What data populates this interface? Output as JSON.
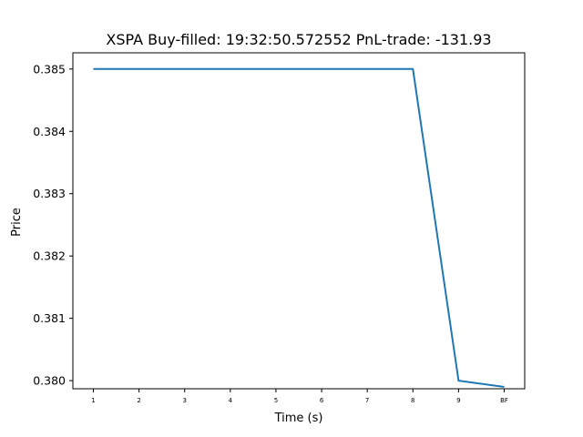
{
  "chart_data": {
    "type": "line",
    "title": "XSPA  Buy-filled:  19:32:50.572552  PnL-trade:  -131.93",
    "xlabel": "Time (s)",
    "ylabel": "Price",
    "categories": [
      "1",
      "2",
      "3",
      "4",
      "5",
      "6",
      "7",
      "8",
      "9",
      "BF"
    ],
    "series": [
      {
        "values": [
          0.385,
          0.385,
          0.385,
          0.385,
          0.385,
          0.385,
          0.385,
          0.385,
          0.38,
          0.3799
        ]
      }
    ],
    "ylim": [
      0.37987,
      0.38526
    ],
    "yticks": [
      0.38,
      0.381,
      0.382,
      0.383,
      0.384,
      0.385
    ],
    "ytick_labels": [
      "0.380",
      "0.381",
      "0.382",
      "0.383",
      "0.384",
      "0.385"
    ],
    "grid": false,
    "colors": {
      "line": "#1f77b4",
      "axes": "#000000"
    }
  }
}
